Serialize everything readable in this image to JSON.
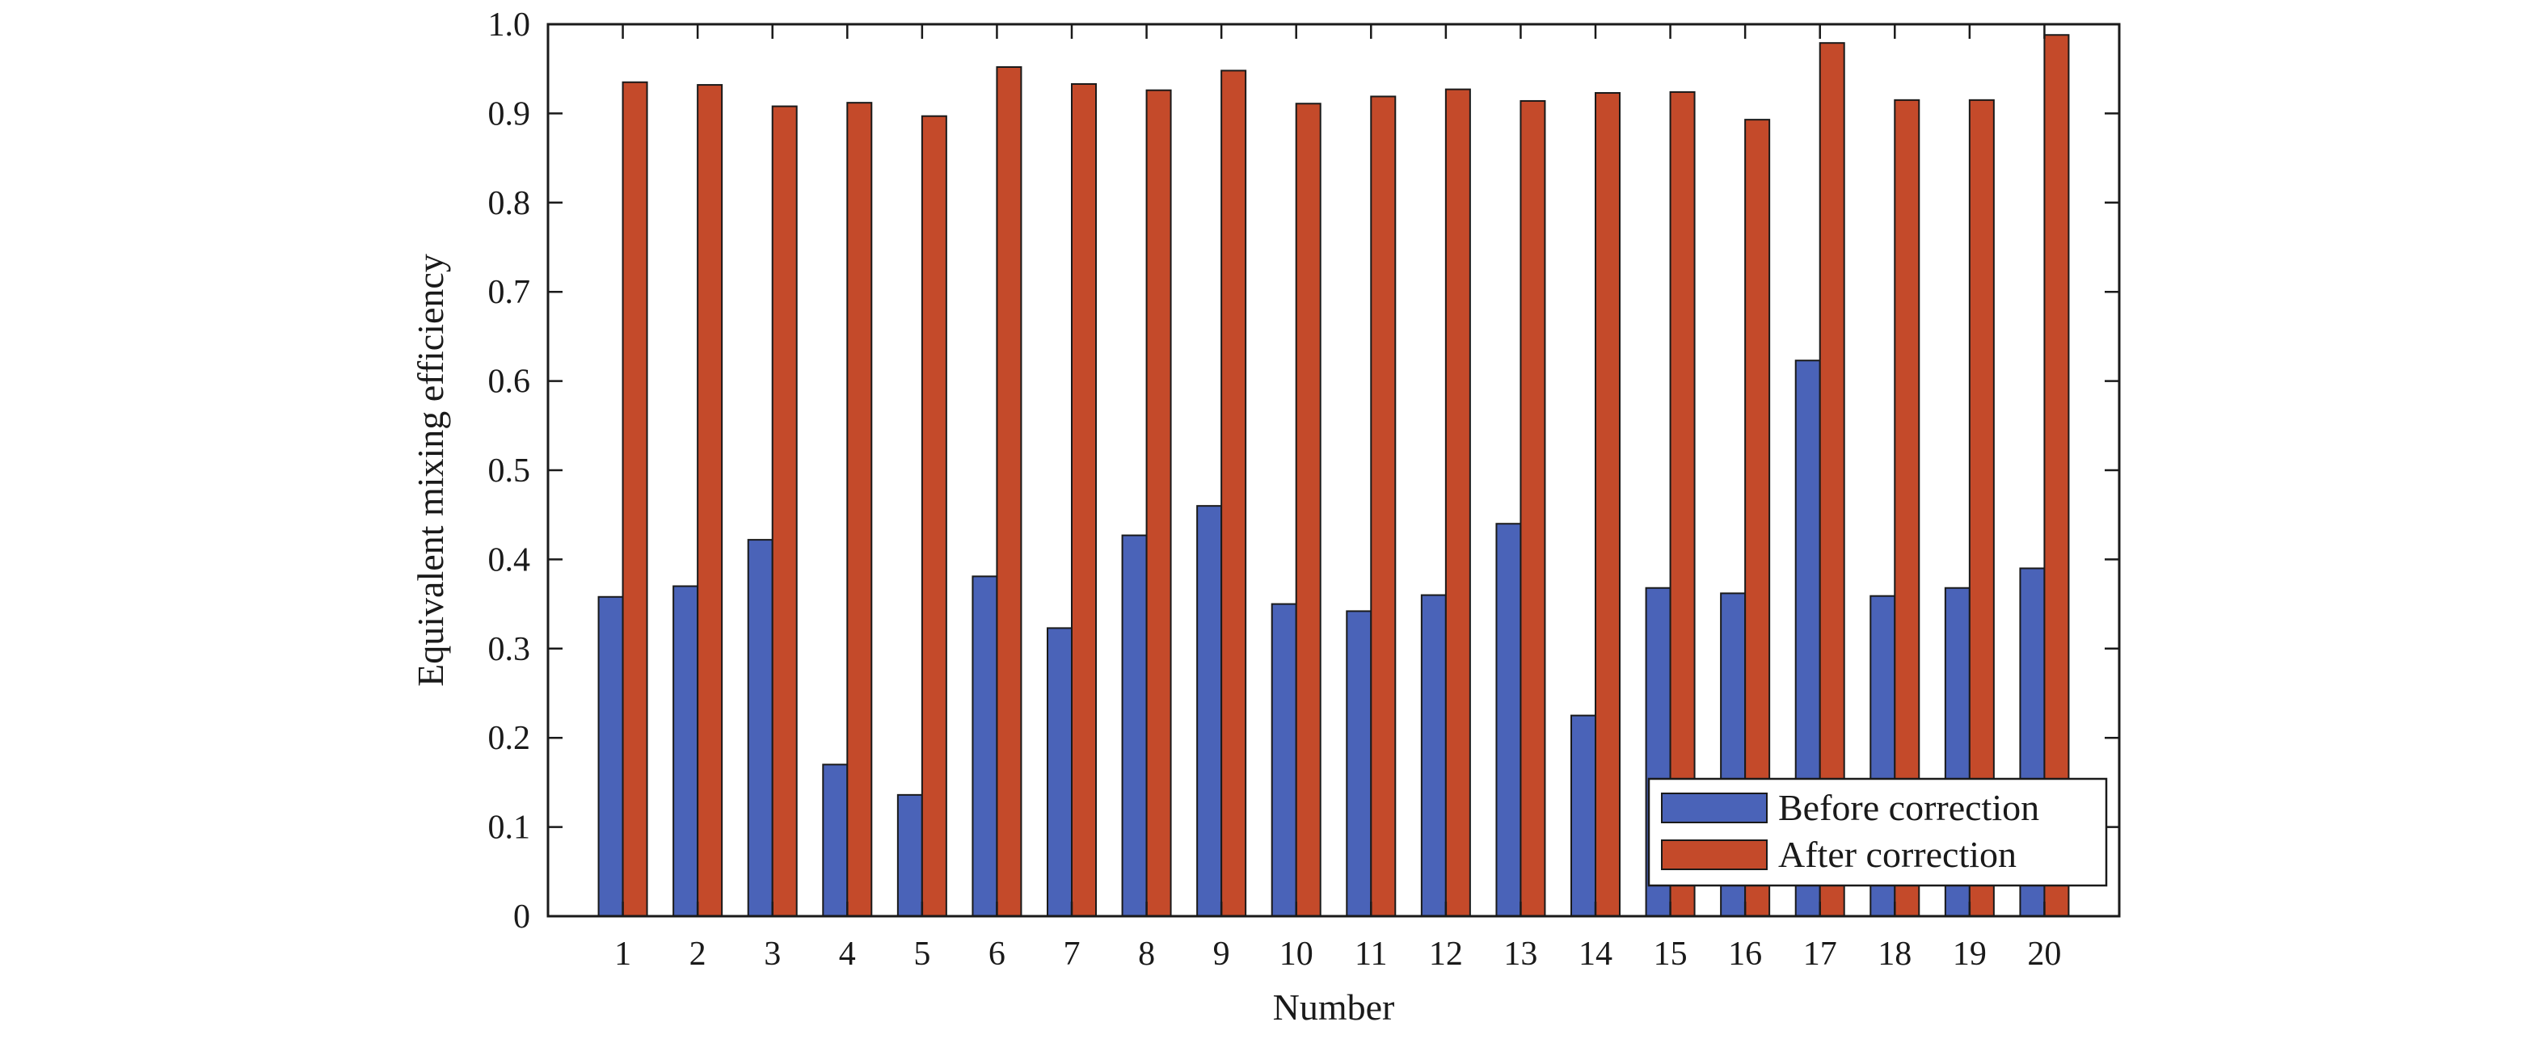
{
  "chart_data": {
    "type": "bar",
    "title": "",
    "xlabel": "Number",
    "ylabel": "Equivalent mixing efficiency",
    "categories": [
      "1",
      "2",
      "3",
      "4",
      "5",
      "6",
      "7",
      "8",
      "9",
      "10",
      "11",
      "12",
      "13",
      "14",
      "15",
      "16",
      "17",
      "18",
      "19",
      "20"
    ],
    "series": [
      {
        "name": "Before correction",
        "color": "#4a63b8",
        "values": [
          0.358,
          0.37,
          0.422,
          0.17,
          0.136,
          0.381,
          0.323,
          0.427,
          0.46,
          0.35,
          0.342,
          0.36,
          0.44,
          0.225,
          0.368,
          0.362,
          0.623,
          0.359,
          0.368,
          0.39
        ]
      },
      {
        "name": "After correction",
        "color": "#c44a2a",
        "values": [
          0.935,
          0.932,
          0.908,
          0.912,
          0.897,
          0.952,
          0.933,
          0.926,
          0.948,
          0.911,
          0.919,
          0.927,
          0.914,
          0.923,
          0.924,
          0.893,
          0.979,
          0.915,
          0.915,
          0.988
        ]
      }
    ],
    "ylim": [
      0,
      1.0
    ],
    "yticks": [
      "0",
      "0.1",
      "0.2",
      "0.3",
      "0.4",
      "0.5",
      "0.6",
      "0.7",
      "0.8",
      "0.9",
      "1.0"
    ],
    "grid": false,
    "legend": "bottom-right"
  }
}
